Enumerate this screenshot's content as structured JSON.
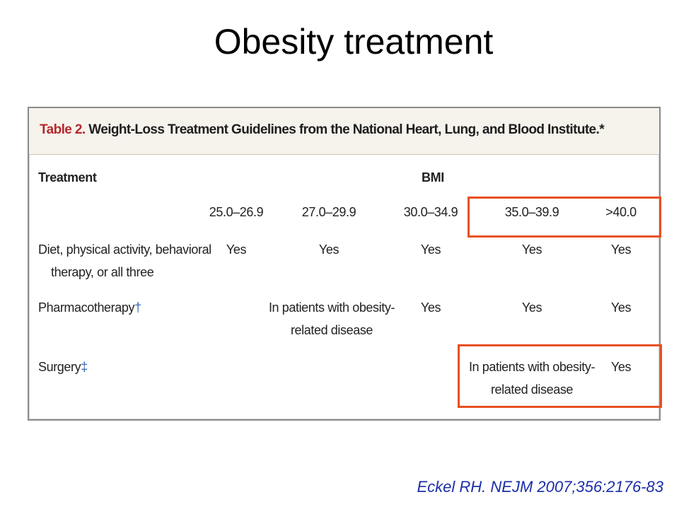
{
  "slide": {
    "title": "Obesity treatment",
    "citation": "Eckel RH. NEJM 2007;356:2176-83"
  },
  "table": {
    "label": "Table 2.",
    "caption": "Weight-Loss Treatment Guidelines from the National Heart, Lung, and Blood Institute.*",
    "treatment_header": "Treatment",
    "bmi_header": "BMI",
    "bmi_columns": [
      "25.0–26.9",
      "27.0–29.9",
      "30.0–34.9",
      "35.0–39.9",
      ">40.0"
    ],
    "rows": [
      {
        "treatment_lines": [
          "Diet, physical activity, behavioral",
          "therapy, or all three"
        ],
        "mark": "",
        "values": [
          "Yes",
          "Yes",
          "Yes",
          "Yes",
          "Yes"
        ]
      },
      {
        "treatment_lines": [
          "Pharmacotherapy"
        ],
        "mark": "†",
        "note_lines": [
          "In patients with obesity-",
          "related disease"
        ],
        "values": [
          "Yes",
          "Yes",
          "Yes"
        ]
      },
      {
        "treatment_lines": [
          "Surgery"
        ],
        "mark": "‡",
        "note_lines": [
          "In patients with obesity-",
          "related disease"
        ],
        "values": [
          "Yes"
        ]
      }
    ]
  },
  "colors": {
    "highlight": "#e85020",
    "citation": "#1b2ea8",
    "table_label": "#b5282e",
    "footnote_mark": "#3567b5"
  }
}
